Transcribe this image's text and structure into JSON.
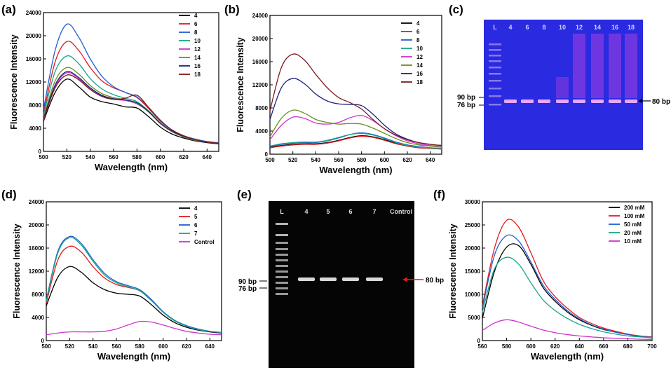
{
  "panels": {
    "a": "(a)",
    "b": "(b)",
    "c": "(c)",
    "d": "(d)",
    "e": "(e)",
    "f": "(f)"
  },
  "colors": {
    "black": "#000000",
    "red": "#e41a1c",
    "blue": "#1f5fd0",
    "teal": "#17a589",
    "magenta": "#cc33cc",
    "olive": "#6b8e23",
    "navy": "#1a237e",
    "maroon": "#7b1c1c",
    "gel_c_bg": "#2a2ae0",
    "gel_e_bg": "#050505"
  },
  "chart_data": [
    {
      "id": "a",
      "type": "line",
      "xlabel": "Wavelength (nm)",
      "ylabel": "Fluorescence Intensity",
      "xlim": [
        500,
        650
      ],
      "ylim": [
        0,
        24000
      ],
      "xticks": [
        500,
        520,
        540,
        560,
        580,
        600,
        620,
        640
      ],
      "yticks": [
        0,
        4000,
        8000,
        12000,
        16000,
        20000,
        24000
      ],
      "x": [
        500,
        510,
        520,
        530,
        540,
        550,
        560,
        570,
        580,
        590,
        600,
        610,
        620,
        630,
        640,
        650
      ],
      "series": [
        {
          "name": "4",
          "color": "#000000",
          "values": [
            5200,
            10200,
            12500,
            11200,
            9400,
            8600,
            8200,
            7700,
            7500,
            6000,
            4200,
            3000,
            2300,
            1800,
            1500,
            1300
          ]
        },
        {
          "name": "6",
          "color": "#e41a1c",
          "values": [
            6500,
            15500,
            19000,
            17500,
            14500,
            12200,
            11000,
            10200,
            9300,
            7400,
            5200,
            3700,
            2700,
            2100,
            1700,
            1500
          ]
        },
        {
          "name": "8",
          "color": "#1f5fd0",
          "values": [
            7200,
            17500,
            22000,
            19800,
            16000,
            13000,
            11200,
            10200,
            9400,
            7600,
            5300,
            3700,
            2700,
            2100,
            1700,
            1500
          ]
        },
        {
          "name": "10",
          "color": "#17a589",
          "values": [
            6200,
            13800,
            16500,
            15200,
            12600,
            10800,
            9800,
            9200,
            8600,
            7000,
            4900,
            3500,
            2600,
            2000,
            1600,
            1400
          ]
        },
        {
          "name": "12",
          "color": "#cc33cc",
          "values": [
            5400,
            11200,
            13600,
            12600,
            10800,
            9600,
            9000,
            8800,
            8200,
            6800,
            4800,
            3400,
            2500,
            1900,
            1600,
            1400
          ]
        },
        {
          "name": "14",
          "color": "#6b8e23",
          "values": [
            5800,
            12200,
            14500,
            13400,
            11400,
            10000,
            9300,
            8900,
            8300,
            6800,
            4800,
            3400,
            2500,
            1900,
            1600,
            1400
          ]
        },
        {
          "name": "16",
          "color": "#1a237e",
          "values": [
            5600,
            11500,
            13800,
            12800,
            11000,
            9700,
            9100,
            8900,
            8400,
            6900,
            4900,
            3500,
            2600,
            2000,
            1600,
            1400
          ]
        },
        {
          "name": "18",
          "color": "#7b1c1c",
          "values": [
            5500,
            11000,
            13200,
            12400,
            10700,
            9500,
            9000,
            9200,
            9700,
            7600,
            5400,
            3700,
            2700,
            2000,
            1600,
            1400
          ]
        }
      ]
    },
    {
      "id": "b",
      "type": "line",
      "xlabel": "Wavelength (nm)",
      "ylabel": "Fluorescence Intensity",
      "xlim": [
        500,
        650
      ],
      "ylim": [
        0,
        24000
      ],
      "xticks": [
        500,
        520,
        540,
        560,
        580,
        600,
        620,
        640
      ],
      "yticks": [
        0,
        4000,
        8000,
        12000,
        16000,
        20000,
        24000
      ],
      "x": [
        500,
        510,
        520,
        530,
        540,
        550,
        560,
        570,
        580,
        590,
        600,
        610,
        620,
        630,
        640,
        650
      ],
      "series": [
        {
          "name": "4",
          "color": "#000000",
          "values": [
            1200,
            1500,
            1700,
            1800,
            1800,
            2000,
            2400,
            2900,
            3200,
            3000,
            2500,
            1900,
            1400,
            1200,
            1000,
            900
          ]
        },
        {
          "name": "6",
          "color": "#e41a1c",
          "values": [
            1100,
            1400,
            1600,
            1700,
            1700,
            1900,
            2300,
            2800,
            3100,
            2900,
            2400,
            1800,
            1400,
            1100,
            1000,
            900
          ]
        },
        {
          "name": "8",
          "color": "#1f5fd0",
          "values": [
            1300,
            1700,
            1900,
            2000,
            2000,
            2300,
            2800,
            3400,
            3700,
            3400,
            2800,
            2100,
            1600,
            1300,
            1100,
            1000
          ]
        },
        {
          "name": "10",
          "color": "#17a589",
          "values": [
            1400,
            1800,
            2000,
            2100,
            2100,
            2400,
            2900,
            3400,
            3600,
            3300,
            2700,
            2000,
            1500,
            1200,
            1100,
            1000
          ]
        },
        {
          "name": "12",
          "color": "#cc33cc",
          "values": [
            2500,
            5000,
            6400,
            6200,
            5400,
            5200,
            5500,
            6300,
            6700,
            5800,
            4400,
            3200,
            2300,
            1800,
            1500,
            1300
          ]
        },
        {
          "name": "14",
          "color": "#6b8e23",
          "values": [
            3000,
            6200,
            7600,
            7100,
            6000,
            5500,
            5200,
            5300,
            5200,
            4500,
            3600,
            2700,
            2000,
            1600,
            1400,
            1200
          ]
        },
        {
          "name": "16",
          "color": "#1a237e",
          "values": [
            6000,
            11500,
            13100,
            12200,
            10400,
            9200,
            8700,
            8600,
            8400,
            6900,
            5000,
            3500,
            2600,
            2000,
            1700,
            1500
          ]
        },
        {
          "name": "18",
          "color": "#7b1c1c",
          "values": [
            7500,
            15000,
            17300,
            16300,
            13800,
            11500,
            9800,
            8900,
            7800,
            6000,
            4400,
            3300,
            2500,
            2000,
            1700,
            1500
          ]
        }
      ]
    },
    {
      "id": "d",
      "type": "line",
      "xlabel": "Wavelength (nm)",
      "ylabel": "Fluorescence Intensity",
      "xlim": [
        500,
        650
      ],
      "ylim": [
        0,
        24000
      ],
      "xticks": [
        500,
        520,
        540,
        560,
        580,
        600,
        620,
        640
      ],
      "yticks": [
        0,
        4000,
        8000,
        12000,
        16000,
        20000,
        24000
      ],
      "x": [
        500,
        510,
        520,
        530,
        540,
        550,
        560,
        570,
        580,
        590,
        600,
        610,
        620,
        630,
        640,
        650
      ],
      "series": [
        {
          "name": "4",
          "color": "#000000",
          "values": [
            6000,
            11000,
            12800,
            11800,
            10000,
            8800,
            8200,
            8000,
            7700,
            6200,
            4400,
            3100,
            2300,
            1800,
            1500,
            1300
          ]
        },
        {
          "name": "5",
          "color": "#e41a1c",
          "values": [
            6500,
            14000,
            16300,
            15300,
            12800,
            10800,
            9700,
            9200,
            8600,
            7000,
            4900,
            3400,
            2500,
            1900,
            1600,
            1400
          ]
        },
        {
          "name": "6",
          "color": "#1f5fd0",
          "values": [
            7000,
            15500,
            18000,
            16800,
            14000,
            11600,
            10200,
            9500,
            8800,
            7100,
            5000,
            3500,
            2600,
            2000,
            1600,
            1400
          ]
        },
        {
          "name": "7",
          "color": "#17a589",
          "values": [
            6800,
            15200,
            17800,
            16500,
            13700,
            11300,
            10000,
            9300,
            8600,
            6900,
            4900,
            3400,
            2500,
            1900,
            1600,
            1400
          ]
        },
        {
          "name": "Control",
          "color": "#cc33cc",
          "values": [
            1000,
            1300,
            1500,
            1500,
            1500,
            1600,
            2000,
            2700,
            3300,
            3200,
            2700,
            2100,
            1600,
            1300,
            1100,
            1000
          ]
        }
      ]
    },
    {
      "id": "f",
      "type": "line",
      "xlabel": "Wavelength (nm)",
      "ylabel": "Fluorescence Intensity",
      "xlim": [
        560,
        700
      ],
      "ylim": [
        0,
        30000
      ],
      "xticks": [
        560,
        580,
        600,
        620,
        640,
        660,
        680,
        700
      ],
      "yticks": [
        0,
        5000,
        10000,
        15000,
        20000,
        25000,
        30000
      ],
      "x": [
        560,
        570,
        580,
        590,
        600,
        610,
        620,
        630,
        640,
        650,
        660,
        670,
        680,
        690,
        700
      ],
      "series": [
        {
          "name": "200 mM",
          "color": "#000000",
          "values": [
            4800,
            15000,
            20200,
            20500,
            16500,
            11500,
            8500,
            6200,
            4500,
            3300,
            2400,
            1800,
            1300,
            900,
            700
          ]
        },
        {
          "name": "100 mM",
          "color": "#e41a1c",
          "values": [
            7500,
            20000,
            26000,
            24500,
            19000,
            13000,
            9500,
            7000,
            5000,
            3700,
            2700,
            2000,
            1400,
            1000,
            800
          ]
        },
        {
          "name": "50 mM",
          "color": "#1f5fd0",
          "values": [
            7000,
            18500,
            22700,
            21500,
            17000,
            12000,
            8900,
            6500,
            4700,
            3400,
            2500,
            1800,
            1300,
            900,
            700
          ]
        },
        {
          "name": "20 mM",
          "color": "#17a589",
          "values": [
            6200,
            15500,
            18000,
            16500,
            12500,
            8800,
            6500,
            4800,
            3500,
            2600,
            1900,
            1400,
            1000,
            800,
            600
          ]
        },
        {
          "name": "10 mM",
          "color": "#cc33cc",
          "values": [
            2200,
            3800,
            4500,
            4000,
            3100,
            2300,
            1700,
            1300,
            1000,
            800,
            600,
            500,
            400,
            300,
            250
          ]
        }
      ]
    }
  ],
  "gel_c": {
    "lanes": [
      "L",
      "4",
      "6",
      "8",
      "10",
      "12",
      "14",
      "16",
      "18"
    ],
    "markers": [
      "90 bp",
      "76 bp"
    ],
    "product": "80 bp"
  },
  "gel_e": {
    "lanes": [
      "L",
      "4",
      "5",
      "6",
      "7",
      "Control"
    ],
    "markers": [
      "90 bp",
      "76 bp"
    ],
    "product": "80 bp"
  }
}
